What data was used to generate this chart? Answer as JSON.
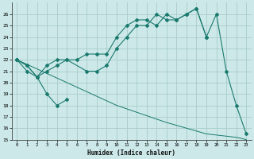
{
  "xlabel": "Humidex (Indice chaleur)",
  "xlim": [
    -0.5,
    23.5
  ],
  "ylim": [
    15,
    27
  ],
  "yticks": [
    15,
    16,
    17,
    18,
    19,
    20,
    21,
    22,
    23,
    24,
    25,
    26
  ],
  "xticks": [
    0,
    1,
    2,
    3,
    4,
    5,
    6,
    7,
    8,
    9,
    10,
    11,
    12,
    13,
    14,
    15,
    16,
    17,
    18,
    19,
    20,
    21,
    22,
    23
  ],
  "bg_color": "#cce8e8",
  "grid_color": "#aacccc",
  "line_color": "#1a7a6e",
  "line_upper_x": [
    0,
    1,
    2,
    3,
    4,
    5,
    6,
    7,
    8,
    9,
    10,
    11,
    12,
    13,
    14,
    15,
    16,
    17,
    18,
    19
  ],
  "line_upper_y": [
    22,
    21.5,
    20.5,
    21.5,
    22.0,
    22.0,
    22.0,
    22.5,
    22.5,
    22.5,
    24.0,
    25.0,
    25.5,
    25.5,
    25.0,
    26.0,
    25.5,
    26.0,
    26.5,
    24.0
  ],
  "line_mid_x": [
    0,
    1,
    2,
    3,
    4,
    5,
    7,
    8,
    9,
    10,
    11,
    12,
    13,
    14,
    15,
    16,
    17,
    18,
    19,
    20,
    21,
    22,
    23
  ],
  "line_mid_y": [
    22,
    21.0,
    20.5,
    21.0,
    21.5,
    22.0,
    21.0,
    21.0,
    21.5,
    23.0,
    24.0,
    25.0,
    25.0,
    26.0,
    25.5,
    25.5,
    26.0,
    26.5,
    24.0,
    26.0,
    21.0,
    18.0,
    15.5
  ],
  "line_lower_x": [
    0,
    1,
    2,
    3,
    4,
    5
  ],
  "line_lower_y": [
    22,
    21.5,
    20.5,
    19.0,
    18.0,
    18.5
  ],
  "line_diag_x": [
    0,
    5,
    10,
    15,
    19,
    20,
    21,
    22,
    23
  ],
  "line_diag_y": [
    22,
    20.0,
    18.0,
    16.5,
    15.5,
    15.4,
    15.3,
    15.2,
    15.0
  ]
}
